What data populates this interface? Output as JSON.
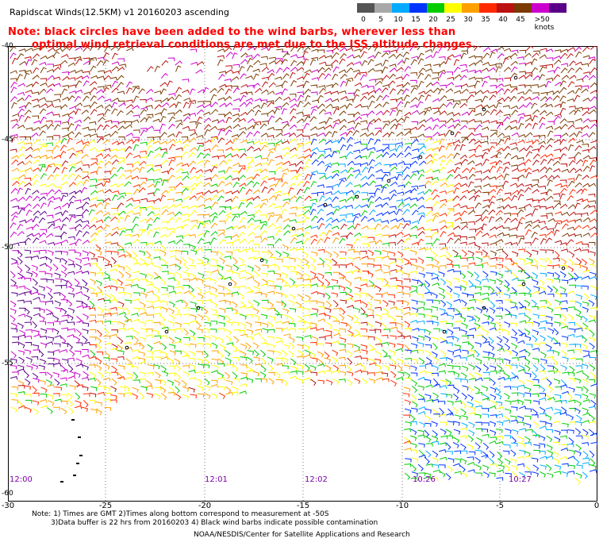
{
  "title": "Rapidscat Winds(12.5KM) v1 20160203 ascending",
  "note_line1": "Note: black circles have been added to the wind barbs, wherever less than",
  "note_line2": "optimal wind retrieval conditions are met due to the ISS altitude changes.",
  "legend": {
    "labels": [
      "0",
      "5",
      "10",
      "15",
      "20",
      "25",
      "30",
      "35",
      "40",
      "45",
      ">50 knots"
    ],
    "colors": [
      "#555555",
      "#a8a8a8",
      "#00aaff",
      "#0033ff",
      "#00cc00",
      "#ffff00",
      "#ffa000",
      "#ff2a00",
      "#bb1111",
      "#7a3a00",
      "#cc00cc",
      "#5a0088"
    ]
  },
  "x_axis": {
    "ticks": [
      "-30",
      "-25",
      "-20",
      "-15",
      "-10",
      "-5",
      "0"
    ]
  },
  "y_axis": {
    "ticks": [
      "-40",
      "-45",
      "-50",
      "-55",
      "-60"
    ]
  },
  "times": [
    "12:00",
    "12:01",
    "12:02",
    "10:26",
    "10:27"
  ],
  "footnote": {
    "line1": "Note: 1) Times are GMT 2)Times along bottom correspond to measurement at -50S",
    "line2": "3)Data buffer is 22 hrs from 20160203 4) Black wind barbs indicate possible contamination",
    "line3": "NOAA/NESDIS/Center for Satellite Applications and Research"
  }
}
